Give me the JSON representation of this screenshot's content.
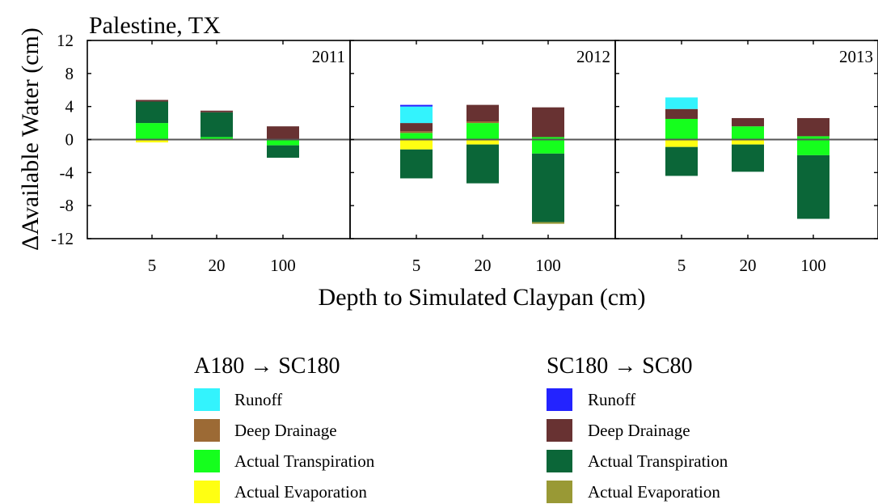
{
  "chart_data": {
    "type": "bar",
    "title": "Palestine, TX",
    "ylabel": "ΔAvailable Water (cm)",
    "xlabel": "Depth to Simulated Claypan (cm)",
    "ylim": [
      -12,
      12
    ],
    "yticks": [
      12,
      8,
      4,
      0,
      -4,
      -8,
      -12
    ],
    "categories": [
      "5",
      "20",
      "100"
    ],
    "grid": false,
    "legend_position": "bottom",
    "panels": [
      {
        "label": "2011",
        "bars": [
          {
            "category": "5",
            "segments": [
              {
                "series": "A180 → SC180 Actual Transpiration",
                "from": 0,
                "to": 2.0
              },
              {
                "series": "SC180 → SC80 Actual Transpiration",
                "from": 2.0,
                "to": 4.6
              },
              {
                "series": "SC180 → SC80 Deep Drainage",
                "from": 4.6,
                "to": 4.8
              },
              {
                "series": "A180 → SC180 Actual Evaporation",
                "from": -0.35,
                "to": 0
              }
            ]
          },
          {
            "category": "20",
            "segments": [
              {
                "series": "A180 → SC180 Actual Transpiration",
                "from": 0,
                "to": 0.3
              },
              {
                "series": "SC180 → SC80 Actual Transpiration",
                "from": 0.3,
                "to": 3.3
              },
              {
                "series": "SC180 → SC80 Deep Drainage",
                "from": 3.3,
                "to": 3.5
              },
              {
                "series": "A180 → SC180 Actual Evaporation",
                "from": -0.1,
                "to": 0
              }
            ]
          },
          {
            "category": "100",
            "segments": [
              {
                "series": "SC180 → SC80 Deep Drainage",
                "from": 0,
                "to": 1.6
              },
              {
                "series": "A180 → SC180 Actual Transpiration",
                "from": -0.7,
                "to": 0
              },
              {
                "series": "SC180 → SC80 Actual Transpiration",
                "from": -2.2,
                "to": -0.7
              }
            ]
          }
        ]
      },
      {
        "label": "2012",
        "bars": [
          {
            "category": "5",
            "segments": [
              {
                "series": "A180 → SC180 Actual Transpiration",
                "from": 0,
                "to": 0.8
              },
              {
                "series": "A180 → SC180 Deep Drainage",
                "from": 0.8,
                "to": 1.0
              },
              {
                "series": "SC180 → SC80 Deep Drainage",
                "from": 1.0,
                "to": 2.0
              },
              {
                "series": "A180 → SC180 Runoff",
                "from": 2.0,
                "to": 4.0
              },
              {
                "series": "SC180 → SC80 Runoff",
                "from": 4.0,
                "to": 4.2
              },
              {
                "series": "A180 → SC180 Actual Evaporation",
                "from": -1.2,
                "to": 0
              },
              {
                "series": "SC180 → SC80 Actual Transpiration",
                "from": -4.7,
                "to": -1.2
              }
            ]
          },
          {
            "category": "20",
            "segments": [
              {
                "series": "A180 → SC180 Actual Transpiration",
                "from": 0,
                "to": 2.0
              },
              {
                "series": "A180 → SC180 Deep Drainage",
                "from": 2.0,
                "to": 2.2
              },
              {
                "series": "SC180 → SC80 Deep Drainage",
                "from": 2.2,
                "to": 4.2
              },
              {
                "series": "A180 → SC180 Actual Evaporation",
                "from": -0.6,
                "to": 0
              },
              {
                "series": "SC180 → SC80 Actual Transpiration",
                "from": -5.3,
                "to": -0.6
              }
            ]
          },
          {
            "category": "100",
            "segments": [
              {
                "series": "A180 → SC180 Actual Transpiration",
                "from": 0,
                "to": 0.3
              },
              {
                "series": "SC180 → SC80 Deep Drainage",
                "from": 0.3,
                "to": 3.9
              },
              {
                "series": "A180 → SC180 Actual Transpiration",
                "from": -1.7,
                "to": 0
              },
              {
                "series": "SC180 → SC80 Actual Transpiration",
                "from": -10.0,
                "to": -1.7
              },
              {
                "series": "SC180 → SC80 Actual Evaporation",
                "from": -10.2,
                "to": -10.0
              }
            ]
          }
        ]
      },
      {
        "label": "2013",
        "bars": [
          {
            "category": "5",
            "segments": [
              {
                "series": "A180 → SC180 Actual Transpiration",
                "from": 0,
                "to": 2.5
              },
              {
                "series": "SC180 → SC80 Deep Drainage",
                "from": 2.5,
                "to": 3.7
              },
              {
                "series": "A180 → SC180 Runoff",
                "from": 3.7,
                "to": 5.1
              },
              {
                "series": "A180 → SC180 Actual Evaporation",
                "from": -0.9,
                "to": 0
              },
              {
                "series": "SC180 → SC80 Actual Transpiration",
                "from": -4.4,
                "to": -0.9
              }
            ]
          },
          {
            "category": "20",
            "segments": [
              {
                "series": "A180 → SC180 Actual Transpiration",
                "from": 0,
                "to": 1.6
              },
              {
                "series": "SC180 → SC80 Deep Drainage",
                "from": 1.6,
                "to": 2.6
              },
              {
                "series": "A180 → SC180 Actual Evaporation",
                "from": -0.6,
                "to": 0
              },
              {
                "series": "SC180 → SC80 Actual Transpiration",
                "from": -3.9,
                "to": -0.6
              }
            ]
          },
          {
            "category": "100",
            "segments": [
              {
                "series": "A180 → SC180 Actual Transpiration",
                "from": 0,
                "to": 0.4
              },
              {
                "series": "SC180 → SC80 Deep Drainage",
                "from": 0.4,
                "to": 2.6
              },
              {
                "series": "A180 → SC180 Actual Transpiration",
                "from": -1.9,
                "to": 0
              },
              {
                "series": "SC180 → SC80 Actual Transpiration",
                "from": -9.6,
                "to": -1.9
              }
            ]
          }
        ]
      }
    ]
  },
  "legend": {
    "groups": [
      {
        "title": "A180 → SC180",
        "items": [
          {
            "label": "Runoff",
            "color": "#33f3fd"
          },
          {
            "label": "Deep Drainage",
            "color": "#9c6a35"
          },
          {
            "label": "Actual Transpiration",
            "color": "#15ff1d"
          },
          {
            "label": "Actual Evaporation",
            "color": "#ffff12"
          }
        ]
      },
      {
        "title": "SC180 → SC80",
        "items": [
          {
            "label": "Runoff",
            "color": "#2323ff"
          },
          {
            "label": "Deep Drainage",
            "color": "#683232"
          },
          {
            "label": "Actual Transpiration",
            "color": "#0b6638"
          },
          {
            "label": "Actual Evaporation",
            "color": "#999935"
          }
        ]
      }
    ]
  }
}
